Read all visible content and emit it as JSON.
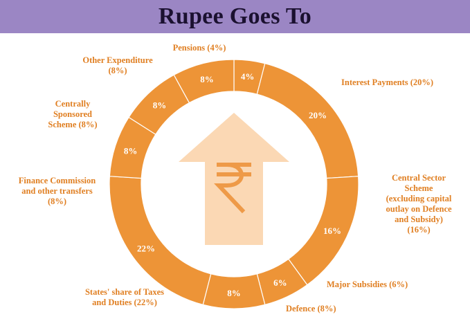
{
  "title": "Rupee Goes To",
  "colors": {
    "header_bg": "#9b86c4",
    "slice": "#ed9437",
    "slice_stroke": "#ffffff",
    "slice_label": "#ffffff",
    "label_text": "#e07f22",
    "arrow": "#fbd8b4",
    "rupee": "#ee9a48"
  },
  "icons": {
    "center": "rupee-up-arrow-icon"
  },
  "chart_data": {
    "type": "pie",
    "variant": "donut",
    "unit": "%",
    "slices": [
      {
        "label": [
          "Pensions (4%)"
        ],
        "value": 4
      },
      {
        "label": [
          "Interest Payments (20%)"
        ],
        "value": 20
      },
      {
        "label": [
          "Central Sector",
          "Scheme",
          "(excluding capital",
          "outlay on Defence",
          "and Subsidy)",
          "(16%)"
        ],
        "value": 16
      },
      {
        "label": [
          "Major Subsidies (6%)"
        ],
        "value": 6
      },
      {
        "label": [
          "Defence (8%)"
        ],
        "value": 8
      },
      {
        "label": [
          "States' share of Taxes",
          "and Duties (22%)"
        ],
        "value": 22
      },
      {
        "label": [
          "Finance Commission",
          "and other transfers",
          "(8%)"
        ],
        "value": 8
      },
      {
        "label": [
          "Centrally",
          "Sponsored",
          "Scheme (8%)"
        ],
        "value": 8
      },
      {
        "label": [
          "Other Expenditure",
          "(8%)"
        ],
        "value": 8
      }
    ]
  }
}
